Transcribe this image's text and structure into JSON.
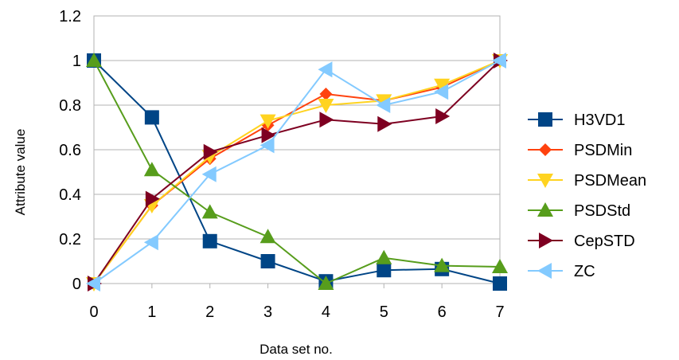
{
  "chart_data": {
    "type": "line",
    "title": "",
    "xlabel": "Data set no.",
    "ylabel": "Attribute value",
    "x": [
      0,
      1,
      2,
      3,
      4,
      5,
      6,
      7
    ],
    "xlim": [
      0,
      7
    ],
    "ylim": [
      0,
      1.2
    ],
    "yticks": [
      "0",
      "0.2",
      "0.4",
      "0.6",
      "0.8",
      "1",
      "1.2"
    ],
    "xticks": [
      "0",
      "1",
      "2",
      "3",
      "4",
      "5",
      "6",
      "7"
    ],
    "grid": "horizontal",
    "legend_position": "right",
    "series": [
      {
        "name": "H3VD1",
        "color": "#004586",
        "marker": "square",
        "values": [
          1.0,
          0.745,
          0.19,
          0.1,
          0.01,
          0.06,
          0.065,
          0.0
        ]
      },
      {
        "name": "PSDMin",
        "color": "#ff420e",
        "marker": "diamond",
        "values": [
          0.0,
          0.35,
          0.56,
          0.71,
          0.85,
          0.82,
          0.88,
          1.0
        ]
      },
      {
        "name": "PSDMean",
        "color": "#ffd320",
        "marker": "triangle-down",
        "values": [
          0.0,
          0.35,
          0.57,
          0.73,
          0.8,
          0.82,
          0.89,
          1.0
        ]
      },
      {
        "name": "PSDStd",
        "color": "#579d1c",
        "marker": "triangle-up",
        "values": [
          1.0,
          0.51,
          0.32,
          0.21,
          0.0,
          0.115,
          0.08,
          0.075
        ]
      },
      {
        "name": "CepSTD",
        "color": "#7e0021",
        "marker": "triangle-right",
        "values": [
          0.0,
          0.38,
          0.59,
          0.665,
          0.735,
          0.715,
          0.75,
          1.0
        ]
      },
      {
        "name": "ZC",
        "color": "#83caff",
        "marker": "triangle-left",
        "values": [
          0.0,
          0.185,
          0.49,
          0.62,
          0.96,
          0.8,
          0.86,
          1.0
        ]
      }
    ]
  }
}
